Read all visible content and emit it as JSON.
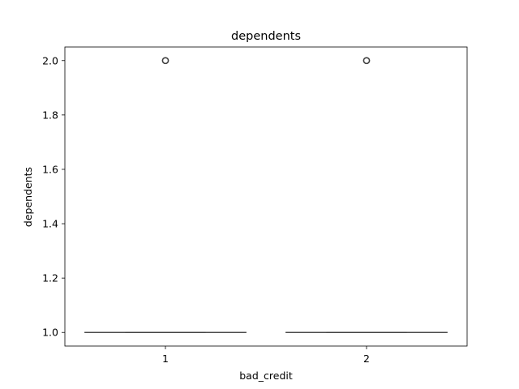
{
  "chart_data": {
    "type": "box",
    "title": "dependents",
    "xlabel": "bad_credit",
    "ylabel": "dependents",
    "categories": [
      "1",
      "2"
    ],
    "ylim": [
      0.95,
      2.05
    ],
    "yticks": [
      "1.0",
      "1.2",
      "1.4",
      "1.6",
      "1.8",
      "2.0"
    ],
    "ytick_values": [
      1.0,
      1.2,
      1.4,
      1.6,
      1.8,
      2.0
    ],
    "boxes": [
      {
        "category": "1",
        "whisker_low": 1.0,
        "q1": 1.0,
        "median": 1.0,
        "q3": 1.0,
        "whisker_high": 1.0,
        "outliers": [
          2.0
        ]
      },
      {
        "category": "2",
        "whisker_low": 1.0,
        "q1": 1.0,
        "median": 1.0,
        "q3": 1.0,
        "whisker_high": 1.0,
        "outliers": [
          2.0
        ]
      }
    ],
    "grid": false,
    "legend": "none"
  }
}
